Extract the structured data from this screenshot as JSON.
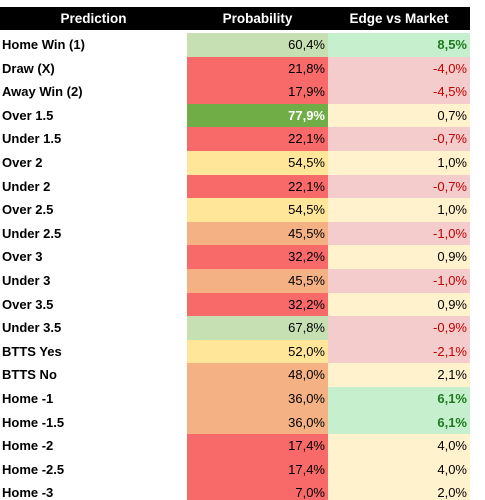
{
  "table": {
    "header": [
      "Prediction",
      "Probability",
      "Edge vs Market"
    ],
    "rows": [
      [
        "Home Win (1)",
        "60,4%",
        "8,5%"
      ],
      [
        "Draw (X)",
        "21,8%",
        "-4,0%"
      ],
      [
        "Away Win (2)",
        "17,9%",
        "-4,5%"
      ],
      [
        "Over 1.5",
        "77,9%",
        "0,7%"
      ],
      [
        "Under 1.5",
        "22,1%",
        "-0,7%"
      ],
      [
        "Over 2",
        "54,5%",
        "1,0%"
      ],
      [
        "Under 2",
        "22,1%",
        "-0,7%"
      ],
      [
        "Over 2.5",
        "54,5%",
        "1,0%"
      ],
      [
        "Under 2.5",
        "45,5%",
        "-1,0%"
      ],
      [
        "Over 3",
        "32,2%",
        "0,9%"
      ],
      [
        "Under 3",
        "45,5%",
        "-1,0%"
      ],
      [
        "Over 3.5",
        "32,2%",
        "0,9%"
      ],
      [
        "Under 3.5",
        "67,8%",
        "-0,9%"
      ],
      [
        "BTTS Yes",
        "52,0%",
        "-2,1%"
      ],
      [
        "BTTS No",
        "48,0%",
        "2,1%"
      ],
      [
        "Home -1",
        "36,0%",
        "6,1%"
      ],
      [
        "Home -1.5",
        "36,0%",
        "6,1%"
      ],
      [
        "Home -2",
        "17,4%",
        "4,0%"
      ],
      [
        "Home -2.5",
        "17,4%",
        "4,0%"
      ],
      [
        "Home -3",
        "7,0%",
        "2,0%"
      ]
    ]
  }
}
